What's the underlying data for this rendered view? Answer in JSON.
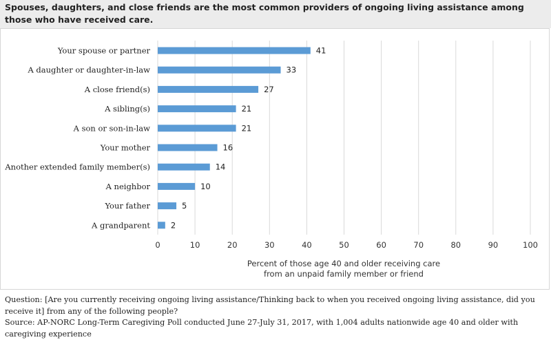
{
  "title": "Spouses, daughters, and close friends are the most common providers of ongoing living assistance among those who have received care.",
  "chart_data": {
    "type": "bar",
    "orientation": "horizontal",
    "categories": [
      "Your spouse or partner",
      "A daughter or daughter-in-law",
      "A close friend(s)",
      "A sibling(s)",
      "A son or son-in-law",
      "Your mother",
      "Another extended family member(s)",
      "A neighbor",
      "Your father",
      "A grandparent"
    ],
    "values": [
      41,
      33,
      27,
      21,
      21,
      16,
      14,
      10,
      5,
      2
    ],
    "xlim": [
      0,
      100
    ],
    "xticks": [
      0,
      10,
      20,
      30,
      40,
      50,
      60,
      70,
      80,
      90,
      100
    ],
    "xlabel_line1": "Percent of those age 40 and older receiving care",
    "xlabel_line2": "from an unpaid family member or friend",
    "bar_color": "#5b9bd5",
    "grid": true
  },
  "notes": {
    "question": "Question: [Are you currently receiving ongoing living assistance/Thinking back to when you received ongoing living assistance, did you receive it] from any of the following people?",
    "source": "Source: AP-NORC Long-Term Caregiving Poll conducted June 27-July 31, 2017, with 1,004 adults nationwide age 40 and older with caregiving experience"
  }
}
